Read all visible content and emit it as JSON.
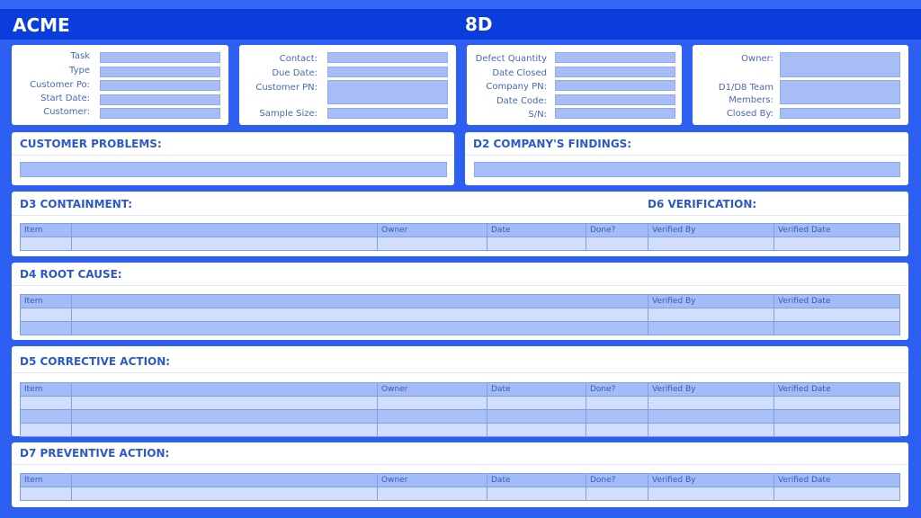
{
  "header": {
    "brand": "ACME",
    "title": "8D"
  },
  "info": {
    "col1": [
      "Task",
      "Type",
      "Customer Po:",
      "Start Date:",
      "Customer:"
    ],
    "col2": [
      "Contact:",
      "Due Date:",
      "Customer PN:",
      "Sample Size:"
    ],
    "col3": [
      "Defect Quantity",
      "Date Closed",
      "Company PN:",
      "Date Code:",
      "S/N:"
    ],
    "col4": [
      "Owner:",
      "D1/D8 Team Members:",
      "Closed By:"
    ]
  },
  "sections": {
    "customer_problems": "CUSTOMER PROBLEMS:",
    "d2": "D2 COMPANY'S FINDINGS:",
    "d3": "D3 CONTAINMENT:",
    "d6": "D6 VERIFICATION:",
    "d4": "D4 ROOT CAUSE:",
    "d5": "D5 CORRECTIVE ACTION:",
    "d7": "D7 PREVENTIVE ACTION:"
  },
  "table_headers": {
    "full": [
      "Item",
      "",
      "Owner",
      "Date",
      "Done?",
      "Verified By",
      "Verified Date"
    ],
    "root_cause": [
      "Item",
      "",
      "Verified By",
      "Verified Date"
    ]
  },
  "colors": {
    "background": "#2c5ff2",
    "header": "#0a3ddc",
    "field": "#a6bdf7",
    "row_light": "#d1defd",
    "row_dark": "#a9c0f8"
  }
}
